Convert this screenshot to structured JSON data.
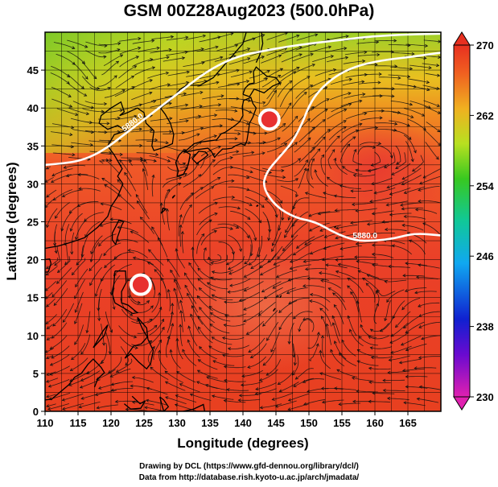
{
  "title": "GSM 00Z28Aug2023 (500.0hPa)",
  "chart_data": {
    "type": "heatmap",
    "title": "GSM 00Z28Aug2023 (500.0hPa)",
    "xlabel": "Longitude (degrees)",
    "ylabel": "Latitude  (degrees)",
    "xlim": [
      110,
      170
    ],
    "ylim": [
      0,
      50
    ],
    "x_ticks": [
      "110",
      "115",
      "120",
      "125",
      "130",
      "135",
      "140",
      "145",
      "150",
      "155",
      "160",
      "165"
    ],
    "y_ticks": [
      "0",
      "5",
      "10",
      "15",
      "20",
      "25",
      "30",
      "35",
      "40",
      "45"
    ],
    "grid": true,
    "colorbar": {
      "placement": "right",
      "range": [
        230,
        270
      ],
      "tick_labels": [
        "230",
        "238",
        "246",
        "254",
        "262",
        "270"
      ]
    },
    "contours": [
      {
        "label": "5880.0",
        "points": [
          [
            110,
            32.5
          ],
          [
            113,
            32.7
          ],
          [
            116,
            33.2
          ],
          [
            119,
            34.5
          ],
          [
            122,
            36.5
          ],
          [
            125,
            38.5
          ],
          [
            128,
            40.5
          ],
          [
            131,
            42.5
          ],
          [
            134,
            44.5
          ],
          [
            137,
            46
          ],
          [
            140,
            47
          ],
          [
            143,
            47.5
          ],
          [
            146,
            48
          ],
          [
            150,
            48.5
          ],
          [
            155,
            49
          ],
          [
            160,
            49.5
          ],
          [
            165,
            49.7
          ],
          [
            170,
            49.8
          ]
        ]
      },
      {
        "label": "5880.0",
        "points": [
          [
            170,
            47.3
          ],
          [
            166,
            46.8
          ],
          [
            161,
            46.3
          ],
          [
            157,
            45.5
          ],
          [
            154,
            44.2
          ],
          [
            151.5,
            42.3
          ],
          [
            150,
            40.3
          ],
          [
            149,
            38
          ],
          [
            147.5,
            35.5
          ],
          [
            145.5,
            33.5
          ],
          [
            143.5,
            31.5
          ],
          [
            143,
            29.5
          ],
          [
            145,
            27
          ],
          [
            148,
            25.5
          ],
          [
            151,
            25
          ],
          [
            154,
            23.5
          ],
          [
            157,
            22.5
          ],
          [
            160,
            22.5
          ],
          [
            163,
            22.8
          ],
          [
            166,
            23.5
          ],
          [
            170,
            23.2
          ]
        ]
      }
    ],
    "cyclone_markers": [
      {
        "lon": 144,
        "lat": 38.5
      },
      {
        "lon": 124.5,
        "lat": 16.7
      }
    ]
  },
  "credits": {
    "line1": "Drawing by DCL (https://www.gfd-dennou.org/library/dcl/)",
    "line2": "Data from http://database.rish.kyoto-u.ac.jp/arch/jmadata/"
  }
}
